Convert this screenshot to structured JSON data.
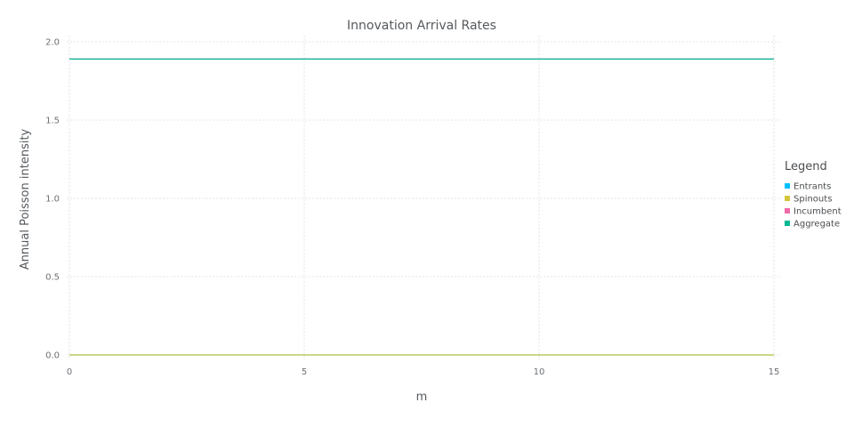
{
  "chart_data": {
    "type": "line",
    "title": "Innovation Arrival Rates",
    "xlabel": "m",
    "ylabel": "Annual Poisson intensity",
    "xlim": [
      0,
      15
    ],
    "ylim": [
      0,
      2.0
    ],
    "xticks": [
      0,
      5,
      10,
      15
    ],
    "yticks": [
      0.0,
      0.5,
      1.0,
      1.5,
      2.0
    ],
    "xtick_labels": [
      "0",
      "5",
      "10",
      "15"
    ],
    "ytick_labels": [
      "0.0",
      "0.5",
      "1.0",
      "1.5",
      "2.0"
    ],
    "grid": true,
    "legend": {
      "title": "Legend",
      "placement": "right"
    },
    "x": [
      0,
      15
    ],
    "series": [
      {
        "name": "Entrants",
        "color": "#00bfff",
        "values": [
          0,
          0
        ]
      },
      {
        "name": "Spinouts",
        "color": "#d4c63c",
        "values": [
          0,
          0
        ]
      },
      {
        "name": "Incumbent",
        "color": "#f06aa8",
        "values": [
          1.89,
          1.89
        ]
      },
      {
        "name": "Aggregate",
        "color": "#00b894",
        "values": [
          1.89,
          1.89
        ]
      }
    ]
  }
}
